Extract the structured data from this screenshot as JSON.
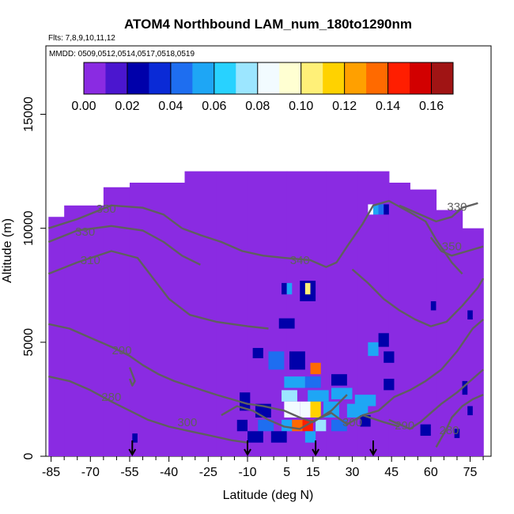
{
  "chart_data": {
    "type": "heatmap",
    "title": "ATOM4 Northbound LAM_num_180to1290nm",
    "flights_note": "Flts: 7,8,9,10,11,12",
    "dates_note": "MMDD: 0509,0512,0514,0517,0518,0519",
    "xlabel": "Latitude (deg N)",
    "ylabel": "Altitude (m)",
    "xlim": [
      -87,
      83
    ],
    "ylim": [
      0,
      18000
    ],
    "x_ticks": [
      -85,
      -70,
      -55,
      -40,
      -25,
      -10,
      5,
      15,
      30,
      45,
      60,
      75
    ],
    "x_tick_labels": [
      "-85",
      "-70",
      "-55",
      "-40",
      "-25",
      "-10",
      "5",
      "15",
      "30",
      "45",
      "60",
      "75"
    ],
    "y_ticks": [
      0,
      5000,
      10000,
      15000
    ],
    "y_tick_labels": [
      "0",
      "5000",
      "10000",
      "15000"
    ],
    "colorbar": {
      "ticks": [
        0.0,
        0.02,
        0.04,
        0.06,
        0.08,
        0.1,
        0.12,
        0.14,
        0.16
      ],
      "tick_labels": [
        "0.00",
        "0.02",
        "0.04",
        "0.06",
        "0.08",
        "0.10",
        "0.12",
        "0.14",
        "0.16"
      ],
      "range": [
        0.0,
        0.17
      ],
      "colors": [
        "#8a2be2",
        "#4b16cf",
        "#0000aa",
        "#0a2ad6",
        "#1e6ef0",
        "#1ea6f5",
        "#28d2ff",
        "#9ce6ff",
        "#f2fbff",
        "#ffffd2",
        "#fff078",
        "#ffd200",
        "#ffa000",
        "#ff6a00",
        "#ff1e00",
        "#d20000",
        "#a01414"
      ]
    },
    "background_value": 0.0,
    "coverage_columns": [
      {
        "lat": -86,
        "top": 10500
      },
      {
        "lat": -80,
        "top": 11000
      },
      {
        "lat": -65,
        "top": 11800
      },
      {
        "lat": -55,
        "top": 12000
      },
      {
        "lat": -45,
        "top": 12000
      },
      {
        "lat": -34,
        "top": 12500
      },
      {
        "lat": -22,
        "top": 12500
      },
      {
        "lat": -10,
        "top": 12500
      },
      {
        "lat": 5,
        "top": 12500
      },
      {
        "lat": 20,
        "top": 12500
      },
      {
        "lat": 32,
        "top": 12500
      },
      {
        "lat": 44,
        "top": 12000
      },
      {
        "lat": 52,
        "top": 11700
      },
      {
        "lat": 62,
        "top": 10800
      },
      {
        "lat": 72,
        "top": 10000
      },
      {
        "lat": 80,
        "top": 10000
      }
    ],
    "cells": [
      {
        "lat": 3,
        "alt": 7100,
        "w": 2,
        "h": 500,
        "v": 0.02
      },
      {
        "lat": 5,
        "alt": 7100,
        "w": 2,
        "h": 500,
        "v": 0.05
      },
      {
        "lat": 10,
        "alt": 6800,
        "w": 6,
        "h": 900,
        "v": 0.03
      },
      {
        "lat": 12,
        "alt": 7100,
        "w": 2,
        "h": 500,
        "v": 0.11
      },
      {
        "lat": 2,
        "alt": 5600,
        "w": 6,
        "h": 450,
        "v": 0.03
      },
      {
        "lat": -8,
        "alt": 4300,
        "w": 4,
        "h": 450,
        "v": 0.02
      },
      {
        "lat": -2,
        "alt": 3800,
        "w": 6,
        "h": 800,
        "v": 0.04
      },
      {
        "lat": 6,
        "alt": 3800,
        "w": 6,
        "h": 800,
        "v": 0.03
      },
      {
        "lat": 14,
        "alt": 3600,
        "w": 4,
        "h": 500,
        "v": 0.13
      },
      {
        "lat": 4,
        "alt": 3000,
        "w": 8,
        "h": 500,
        "v": 0.06
      },
      {
        "lat": 12,
        "alt": 3000,
        "w": 6,
        "h": 500,
        "v": 0.04
      },
      {
        "lat": 22,
        "alt": 3100,
        "w": 6,
        "h": 500,
        "v": 0.03
      },
      {
        "lat": 3,
        "alt": 2400,
        "w": 6,
        "h": 500,
        "v": 0.07
      },
      {
        "lat": 13,
        "alt": 2400,
        "w": 8,
        "h": 500,
        "v": 0.05
      },
      {
        "lat": 22,
        "alt": 2500,
        "w": 8,
        "h": 500,
        "v": 0.06
      },
      {
        "lat": 31,
        "alt": 2200,
        "w": 8,
        "h": 500,
        "v": 0.05
      },
      {
        "lat": -13,
        "alt": 2000,
        "w": 4,
        "h": 800,
        "v": 0.02
      },
      {
        "lat": -7,
        "alt": 1700,
        "w": 6,
        "h": 600,
        "v": 0.03
      },
      {
        "lat": 4,
        "alt": 1700,
        "w": 6,
        "h": 700,
        "v": 0.09
      },
      {
        "lat": 10,
        "alt": 1700,
        "w": 4,
        "h": 700,
        "v": 0.08
      },
      {
        "lat": 14,
        "alt": 1700,
        "w": 4,
        "h": 700,
        "v": 0.12
      },
      {
        "lat": 19,
        "alt": 1700,
        "w": 6,
        "h": 700,
        "v": 0.06
      },
      {
        "lat": 28,
        "alt": 1700,
        "w": 8,
        "h": 600,
        "v": 0.05
      },
      {
        "lat": -14,
        "alt": 1100,
        "w": 4,
        "h": 500,
        "v": 0.02
      },
      {
        "lat": -6,
        "alt": 1100,
        "w": 6,
        "h": 500,
        "v": 0.04
      },
      {
        "lat": 3,
        "alt": 1100,
        "w": 4,
        "h": 500,
        "v": 0.06
      },
      {
        "lat": 7,
        "alt": 1100,
        "w": 4,
        "h": 500,
        "v": 0.13
      },
      {
        "lat": 11,
        "alt": 1100,
        "w": 4,
        "h": 500,
        "v": 0.15
      },
      {
        "lat": 16,
        "alt": 1100,
        "w": 4,
        "h": 500,
        "v": 0.07
      },
      {
        "lat": 22,
        "alt": 1100,
        "w": 6,
        "h": 500,
        "v": 0.04
      },
      {
        "lat": -10,
        "alt": 600,
        "w": 6,
        "h": 500,
        "v": 0.03
      },
      {
        "lat": -1,
        "alt": 600,
        "w": 6,
        "h": 500,
        "v": 0.02
      },
      {
        "lat": 12,
        "alt": 600,
        "w": 4,
        "h": 500,
        "v": 0.05
      },
      {
        "lat": 33,
        "alt": 1300,
        "w": 4,
        "h": 500,
        "v": 0.03
      },
      {
        "lat": 36,
        "alt": 4400,
        "w": 4,
        "h": 600,
        "v": 0.05
      },
      {
        "lat": 40,
        "alt": 4800,
        "w": 4,
        "h": 600,
        "v": 0.03
      },
      {
        "lat": 42,
        "alt": 4100,
        "w": 4,
        "h": 500,
        "v": 0.02
      },
      {
        "lat": 42,
        "alt": 2900,
        "w": 4,
        "h": 500,
        "v": 0.02
      },
      {
        "lat": 56,
        "alt": 900,
        "w": 4,
        "h": 500,
        "v": 0.03
      },
      {
        "lat": 72,
        "alt": 2700,
        "w": 2,
        "h": 600,
        "v": 0.03
      },
      {
        "lat": 74,
        "alt": 1800,
        "w": 2,
        "h": 400,
        "v": 0.02
      },
      {
        "lat": 69,
        "alt": 800,
        "w": 2,
        "h": 400,
        "v": 0.02
      },
      {
        "lat": 74,
        "alt": 6000,
        "w": 2,
        "h": 400,
        "v": 0.02
      },
      {
        "lat": 36,
        "alt": 10600,
        "w": 2,
        "h": 450,
        "v": 0.08
      },
      {
        "lat": 38,
        "alt": 10600,
        "w": 2,
        "h": 450,
        "v": 0.06
      },
      {
        "lat": 40,
        "alt": 10600,
        "w": 2,
        "h": 450,
        "v": 0.04
      },
      {
        "lat": 42,
        "alt": 10600,
        "w": 2,
        "h": 450,
        "v": 0.02
      },
      {
        "lat": 60,
        "alt": 6400,
        "w": 2,
        "h": 400,
        "v": 0.02
      },
      {
        "lat": -54,
        "alt": 600,
        "w": 2,
        "h": 400,
        "v": 0.02
      }
    ],
    "contours": [
      {
        "label": "350",
        "label_at": [
          -64,
          10850
        ],
        "points": [
          [
            -86,
            10000
          ],
          [
            -75,
            10400
          ],
          [
            -62,
            11000
          ],
          [
            -50,
            10900
          ],
          [
            -42,
            10600
          ],
          [
            -35,
            10000
          ]
        ]
      },
      {
        "label": "330",
        "label_at": [
          -72,
          9850
        ],
        "points": [
          [
            -86,
            9400
          ],
          [
            -75,
            9900
          ],
          [
            -62,
            10100
          ],
          [
            -50,
            9900
          ],
          [
            -42,
            9400
          ],
          [
            -35,
            8800
          ],
          [
            -28,
            8400
          ]
        ]
      },
      {
        "label": "310",
        "label_at": [
          -70,
          8600
        ],
        "points": [
          [
            -86,
            8000
          ],
          [
            -75,
            8500
          ],
          [
            -62,
            9000
          ],
          [
            -52,
            8700
          ],
          [
            -46,
            7800
          ],
          [
            -40,
            6900
          ],
          [
            -32,
            6200
          ],
          [
            -22,
            5900
          ],
          [
            -10,
            5700
          ],
          [
            -2,
            5600
          ]
        ]
      },
      {
        "label": "340",
        "label_at": [
          10,
          8600
        ],
        "points": [
          [
            -35,
            10000
          ],
          [
            -28,
            9700
          ],
          [
            -20,
            9400
          ],
          [
            -12,
            9000
          ],
          [
            -4,
            8800
          ],
          [
            4,
            8700
          ],
          [
            14,
            8600
          ],
          [
            20,
            8300
          ],
          [
            24,
            8500
          ],
          [
            28,
            9200
          ],
          [
            34,
            10200
          ],
          [
            38,
            11000
          ],
          [
            44,
            11200
          ],
          [
            52,
            10700
          ],
          [
            58,
            10300
          ],
          [
            62,
            9500
          ],
          [
            68,
            8500
          ],
          [
            72,
            8000
          ]
        ]
      },
      {
        "label": "330",
        "label_at": [
          70,
          10950
        ],
        "points": [
          [
            48,
            11000
          ],
          [
            56,
            10600
          ],
          [
            62,
            10300
          ],
          [
            68,
            10500
          ],
          [
            72,
            10900
          ],
          [
            78,
            11100
          ]
        ]
      },
      {
        "label": "350",
        "label_at": [
          68,
          9200
        ],
        "points": [
          [
            60,
            9600
          ],
          [
            64,
            9000
          ],
          [
            68,
            8800
          ],
          [
            74,
            9000
          ],
          [
            80,
            9200
          ]
        ]
      },
      {
        "label": "290",
        "label_at": [
          -58,
          4650
        ],
        "points": [
          [
            -86,
            5800
          ],
          [
            -78,
            5600
          ],
          [
            -70,
            5200
          ],
          [
            -62,
            4800
          ],
          [
            -55,
            4400
          ],
          [
            -50,
            4000
          ],
          [
            -44,
            3600
          ],
          [
            -38,
            3300
          ],
          [
            -30,
            3000
          ],
          [
            -22,
            2700
          ],
          [
            -16,
            2500
          ],
          [
            -10,
            2300
          ],
          [
            -4,
            2200
          ],
          [
            4,
            2000
          ],
          [
            10,
            1700
          ],
          [
            15,
            1500
          ],
          [
            22,
            2000
          ],
          [
            28,
            2700
          ]
        ]
      },
      {
        "label": "280",
        "label_at": [
          -62,
          2600
        ],
        "points": [
          [
            -86,
            3500
          ],
          [
            -78,
            3300
          ],
          [
            -70,
            2900
          ],
          [
            -62,
            2400
          ],
          [
            -55,
            2000
          ],
          [
            -48,
            1600
          ],
          [
            -40,
            1300
          ],
          [
            -32,
            1100
          ],
          [
            -24,
            900
          ],
          [
            -16,
            700
          ],
          [
            -10,
            600
          ]
        ]
      },
      {
        "label": "300",
        "label_at": [
          -33,
          1500
        ],
        "points": [
          [
            -20,
            1800
          ],
          [
            -14,
            2200
          ],
          [
            -8,
            2000
          ],
          [
            -2,
            1600
          ],
          [
            4,
            1300
          ],
          [
            10,
            1200
          ],
          [
            16,
            1600
          ],
          [
            22,
            1900
          ],
          [
            28,
            1400
          ],
          [
            34,
            1800
          ],
          [
            42,
            1500
          ],
          [
            48,
            1300
          ]
        ]
      },
      {
        "label": "300",
        "label_at": [
          30,
          1500
        ],
        "points": [
          [
            34,
            1800
          ],
          [
            40,
            2000
          ],
          [
            46,
            2600
          ],
          [
            52,
            2900
          ],
          [
            58,
            3300
          ],
          [
            64,
            3800
          ],
          [
            70,
            4600
          ],
          [
            76,
            5600
          ],
          [
            80,
            6000
          ]
        ]
      },
      {
        "label": "290",
        "label_at": [
          50,
          1350
        ],
        "points": [
          [
            44,
            1600
          ],
          [
            48,
            1400
          ],
          [
            52,
            1200
          ],
          [
            56,
            1500
          ],
          [
            60,
            1900
          ],
          [
            64,
            2300
          ],
          [
            70,
            2800
          ],
          [
            76,
            3400
          ],
          [
            80,
            3800
          ]
        ]
      },
      {
        "label": "280",
        "label_at": [
          67,
          1150
        ],
        "points": [
          [
            62,
            400
          ],
          [
            64,
            800
          ],
          [
            66,
            1200
          ],
          [
            68,
            1700
          ],
          [
            72,
            2200
          ],
          [
            76,
            2500
          ],
          [
            80,
            2700
          ]
        ]
      },
      {
        "label": "",
        "label_at": null,
        "points": [
          [
            30,
            8200
          ],
          [
            36,
            7600
          ],
          [
            42,
            6900
          ],
          [
            48,
            6400
          ],
          [
            54,
            6000
          ],
          [
            60,
            5700
          ],
          [
            66,
            5900
          ],
          [
            72,
            6600
          ],
          [
            78,
            7400
          ],
          [
            80,
            7800
          ]
        ]
      },
      {
        "label": "",
        "label_at": null,
        "points": [
          [
            -55,
            3900
          ],
          [
            -54,
            3600
          ],
          [
            -53,
            3300
          ],
          [
            -54,
            3100
          ],
          [
            -55,
            3400
          ]
        ]
      }
    ],
    "flight_markers_lat": [
      -54,
      -10,
      16,
      38
    ]
  }
}
